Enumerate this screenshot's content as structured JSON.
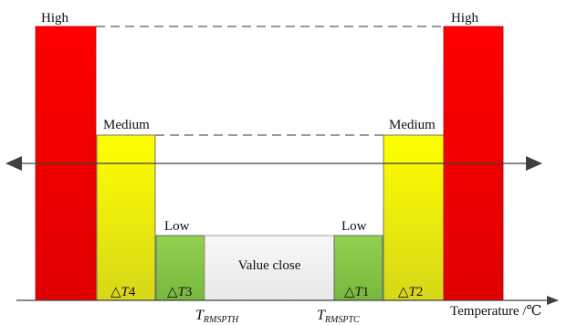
{
  "levels": {
    "high": "High",
    "medium": "Medium",
    "low": "Low"
  },
  "center_label": "Value close",
  "deltas": {
    "t1_sym": "△T",
    "t1_sub": "1",
    "t2_sym": "△T",
    "t2_sub": "2",
    "t3_sym": "△T",
    "t3_sub": "3",
    "t4_sym": "△T",
    "t4_sub": "4"
  },
  "thresholds": {
    "left_main": "T",
    "left_sub": "RMSPTH",
    "right_main": "T",
    "right_sub": "RMSPTC"
  },
  "axis_label": "Temperature /℃",
  "colors": {
    "high_red": "#ff0000",
    "medium_yellow": "#ffff00",
    "low_green": "#8ccc4a",
    "value_close_bg": "#f2f2f2",
    "axis": "#404040"
  }
}
